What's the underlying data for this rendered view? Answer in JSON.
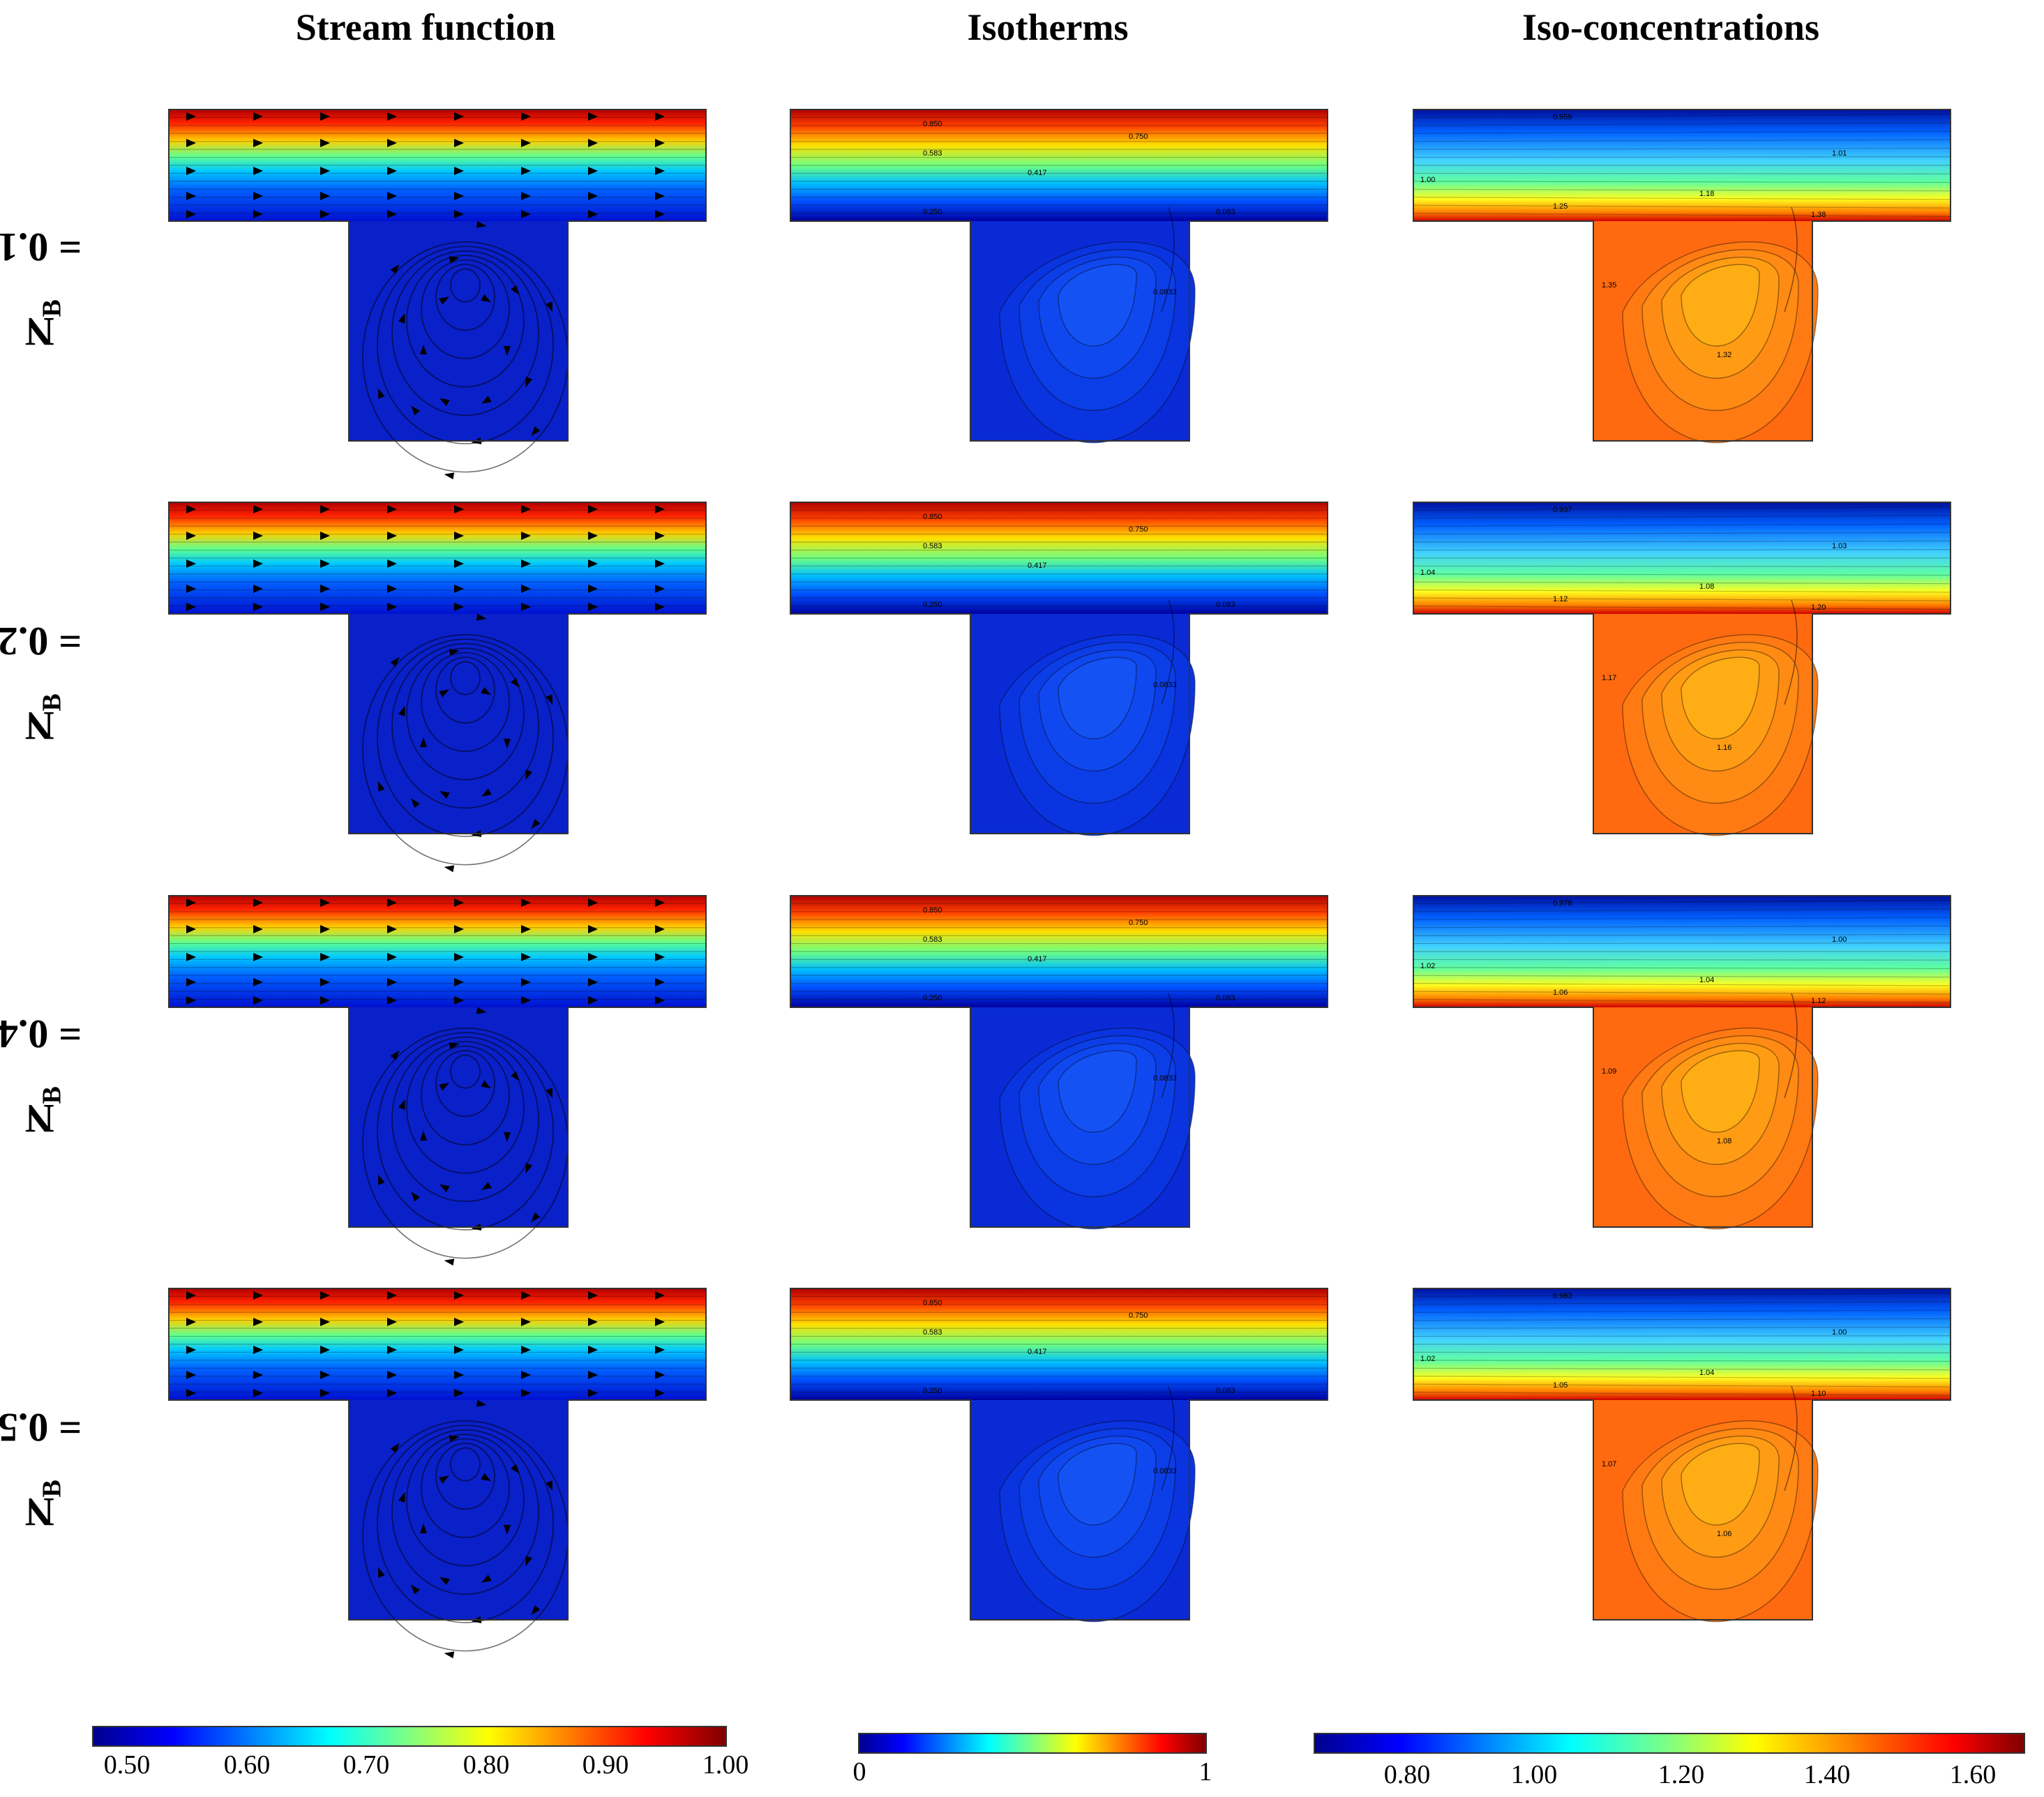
{
  "columns": [
    {
      "title": "Stream function"
    },
    {
      "title": "Isotherms"
    },
    {
      "title": "Iso-concentrations"
    }
  ],
  "rows": [
    {
      "symbol": "N",
      "subscript": "B",
      "value": "= 0.1",
      "iso_labels": [
        "0.850",
        "0.750",
        "0.583",
        "0.417",
        "0.250",
        "0.083",
        "0.0833"
      ],
      "conc_labels": [
        "0.959",
        "1.01",
        "1.00",
        "1.18",
        "1.25",
        "1.38",
        "1.35",
        "1.32"
      ]
    },
    {
      "symbol": "N",
      "subscript": "B",
      "value": "= 0.2",
      "iso_labels": [
        "0.850",
        "0.750",
        "0.583",
        "0.417",
        "0.250",
        "0.083",
        "0.0833"
      ],
      "conc_labels": [
        "0.937",
        "1.03",
        "1.04",
        "1.08",
        "1.12",
        "1.20",
        "1.17",
        "1.16"
      ]
    },
    {
      "symbol": "N",
      "subscript": "B",
      "value": "= 0.4",
      "iso_labels": [
        "0.850",
        "0.750",
        "0.583",
        "0.417",
        "0.250",
        "0.083",
        "0.0833"
      ],
      "conc_labels": [
        "0.978",
        "1.00",
        "1.02",
        "1.04",
        "1.06",
        "1.12",
        "1.09",
        "1.08"
      ]
    },
    {
      "symbol": "N",
      "subscript": "B",
      "value": "= 0.5",
      "iso_labels": [
        "0.850",
        "0.750",
        "0.583",
        "0.417",
        "0.250",
        "0.083",
        "0.0833"
      ],
      "conc_labels": [
        "0.983",
        "1.00",
        "1.02",
        "1.04",
        "1.05",
        "1.10",
        "1.07",
        "1.06"
      ]
    }
  ],
  "colorbars": [
    {
      "ticks": [
        "0.50",
        "0.60",
        "0.70",
        "0.80",
        "0.90",
        "1.00"
      ]
    },
    {
      "ticks": [
        "0",
        "1"
      ]
    },
    {
      "ticks": [
        "0.80",
        "1.00",
        "1.20",
        "1.40",
        "1.60"
      ]
    }
  ],
  "colors": {
    "jet": [
      "#00008f",
      "#0000ff",
      "#0080ff",
      "#00ffff",
      "#80ff80",
      "#ffff00",
      "#ff8000",
      "#ff0000",
      "#800000"
    ],
    "cavity_blue": "#0a20c8",
    "iso_cavity": "#0a2ad6",
    "conc_cavity": "#ff6a10"
  }
}
